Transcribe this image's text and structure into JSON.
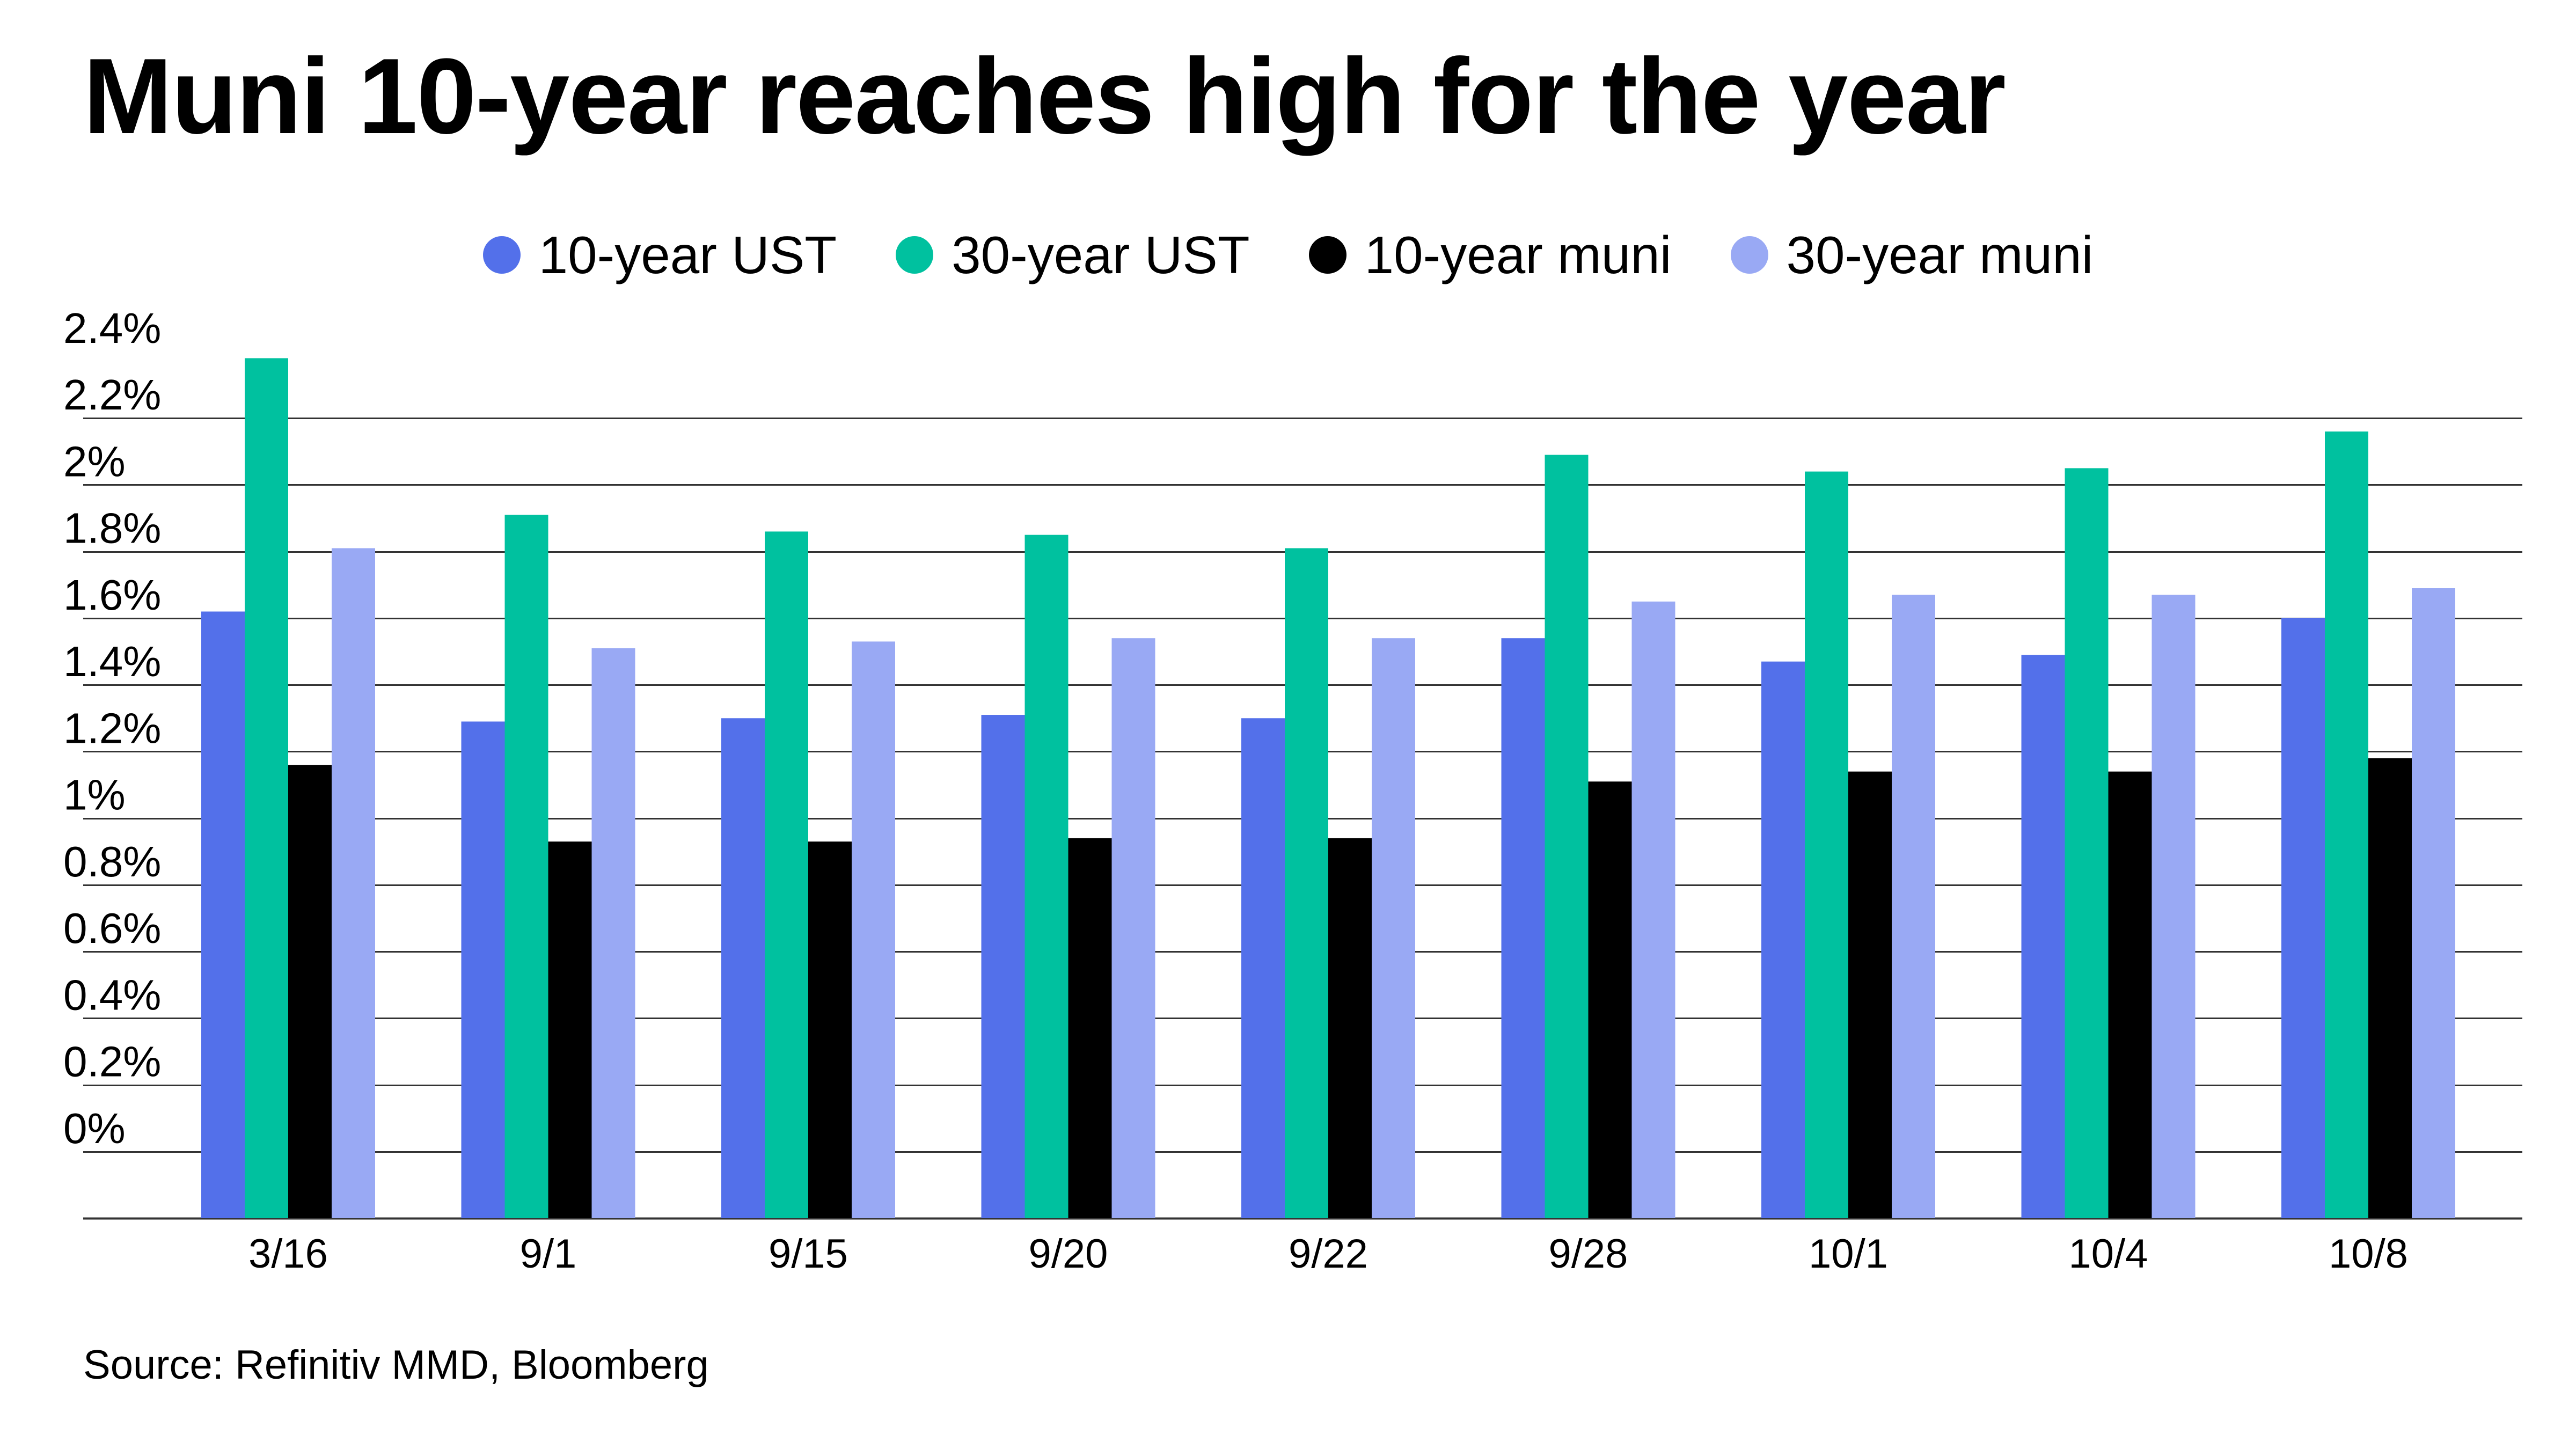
{
  "chart_data": {
    "type": "bar",
    "title": "Muni 10-year reaches high for the year",
    "source": "Source: Refinitiv MMD, Bloomberg",
    "categories": [
      "3/16",
      "9/1",
      "9/15",
      "9/20",
      "9/22",
      "9/28",
      "10/1",
      "10/4",
      "10/8"
    ],
    "series": [
      {
        "name": "10-year UST",
        "color": "#5370ea",
        "values": [
          1.62,
          1.29,
          1.3,
          1.31,
          1.3,
          1.54,
          1.47,
          1.49,
          1.6
        ]
      },
      {
        "name": "30-year UST",
        "color": "#00c19f",
        "values": [
          2.38,
          1.91,
          1.86,
          1.85,
          1.81,
          2.09,
          2.04,
          2.05,
          2.16
        ]
      },
      {
        "name": "10-year muni",
        "color": "#000000",
        "values": [
          1.16,
          0.93,
          0.93,
          0.94,
          0.94,
          1.11,
          1.14,
          1.14,
          1.18
        ]
      },
      {
        "name": "30-year muni",
        "color": "#99a9f4",
        "values": [
          1.81,
          1.51,
          1.53,
          1.54,
          1.54,
          1.65,
          1.67,
          1.67,
          1.69
        ]
      }
    ],
    "yticks": [
      {
        "value": 0,
        "label": "0%"
      },
      {
        "value": 0.2,
        "label": "0.2%"
      },
      {
        "value": 0.4,
        "label": "0.4%"
      },
      {
        "value": 0.6,
        "label": "0.6%"
      },
      {
        "value": 0.8,
        "label": "0.8%"
      },
      {
        "value": 1.0,
        "label": "1%"
      },
      {
        "value": 1.2,
        "label": "1.2%"
      },
      {
        "value": 1.4,
        "label": "1.4%"
      },
      {
        "value": 1.6,
        "label": "1.6%"
      },
      {
        "value": 1.8,
        "label": "1.8%"
      },
      {
        "value": 2.0,
        "label": "2%"
      },
      {
        "value": 2.2,
        "label": "2.2%"
      },
      {
        "value": 2.4,
        "label": "2.4%"
      }
    ],
    "ylim": [
      -0.2,
      2.4
    ],
    "grid": true,
    "legend_position": "top-center",
    "gridline_color": "#333333"
  }
}
